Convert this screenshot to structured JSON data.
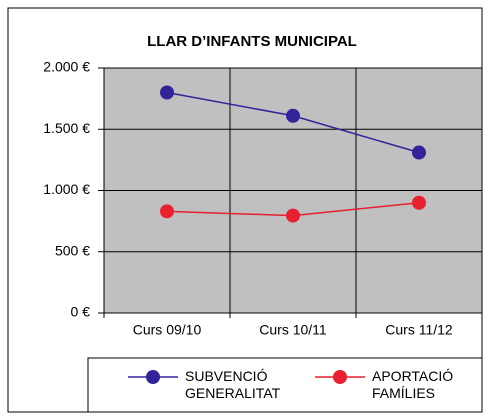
{
  "chart_data": {
    "type": "line",
    "title": "LLAR D’INFANTS MUNICIPAL",
    "categories": [
      "Curs 09/10",
      "Curs 10/11",
      "Curs 11/12"
    ],
    "series": [
      {
        "name": "SUBVENCIÓ GENERALITAT",
        "color": "#33239a",
        "values": [
          1800,
          1610,
          1310
        ]
      },
      {
        "name": "APORTACIÓ FAMÍLIES",
        "color": "#e8202f",
        "values": [
          830,
          795,
          900
        ]
      }
    ],
    "ylim": [
      0,
      2000
    ],
    "yticks": [
      {
        "value": 0,
        "label": "0 €"
      },
      {
        "value": 500,
        "label": "500 €"
      },
      {
        "value": 1000,
        "label": "1.000 €"
      },
      {
        "value": 1500,
        "label": "1.500 €"
      },
      {
        "value": 2000,
        "label": "2.000 €"
      }
    ],
    "grid": true,
    "legend": "bottom"
  }
}
